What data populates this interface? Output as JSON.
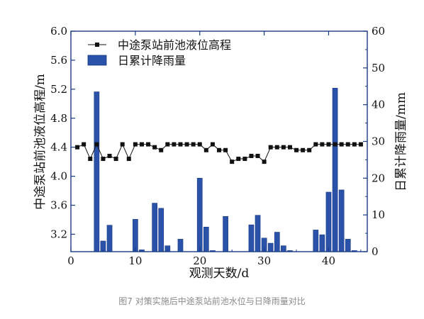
{
  "caption": "图7 对策实施后中途泵站前池水位与日降雨量对比",
  "chart_data": {
    "type": "bar+line",
    "xlabel": "观测天数/d",
    "ylabel_left": "中途泵站前池液位高程/m",
    "ylabel_right": "日累计降雨量/mm",
    "xlim": [
      0,
      46
    ],
    "ylim_left": [
      2.96,
      6.0
    ],
    "ylim_right": [
      0,
      60
    ],
    "x_ticks": [
      0,
      10,
      20,
      30,
      40
    ],
    "y_left_ticks": [
      3.2,
      3.6,
      4.0,
      4.4,
      4.8,
      5.2,
      5.6,
      6.0
    ],
    "y_left_tick_labels": [
      "3.2",
      "3.6",
      "4.0",
      "4.4",
      "4.8",
      "5.2",
      "5.6",
      "6.0"
    ],
    "y_right_ticks": [
      0,
      10,
      20,
      30,
      40,
      50,
      60
    ],
    "legend_position": "top-left",
    "colors": {
      "bars": "#2a52a8",
      "bar_edge": "#1a3a86",
      "line": "#111111"
    },
    "line_series": {
      "name": "中途泵站前池液位高程",
      "x": [
        1,
        2,
        3,
        4,
        5,
        6,
        7,
        8,
        9,
        10,
        11,
        12,
        13,
        14,
        15,
        16,
        17,
        18,
        19,
        20,
        21,
        22,
        23,
        24,
        25,
        26,
        27,
        28,
        29,
        30,
        31,
        32,
        33,
        34,
        35,
        36,
        37,
        38,
        39,
        40,
        41,
        42,
        43,
        44,
        45
      ],
      "y": [
        4.4,
        4.44,
        4.24,
        4.44,
        4.24,
        4.28,
        4.24,
        4.44,
        4.24,
        4.44,
        4.44,
        4.44,
        4.4,
        4.36,
        4.44,
        4.44,
        4.44,
        4.44,
        4.44,
        4.44,
        4.36,
        4.44,
        4.36,
        4.36,
        4.2,
        4.24,
        4.24,
        4.28,
        4.28,
        4.2,
        4.4,
        4.4,
        4.4,
        4.4,
        4.36,
        4.36,
        4.36,
        4.44,
        4.44,
        4.44,
        4.44,
        4.44,
        4.44,
        4.44,
        4.44
      ]
    },
    "bar_series": {
      "name": "日累计降雨量",
      "x": [
        4,
        5,
        6,
        10,
        11,
        13,
        14,
        15,
        17,
        20,
        21,
        22,
        24,
        28,
        29,
        30,
        31,
        32,
        33,
        34,
        38,
        39,
        40,
        41,
        42,
        43,
        44
      ],
      "values": [
        43.5,
        2.9,
        7.2,
        8.8,
        0.5,
        13.2,
        11.8,
        1.6,
        3.4,
        20,
        6.7,
        0.3,
        9.6,
        7.3,
        9.9,
        3.7,
        2.3,
        5.3,
        1.6,
        0.3,
        5.9,
        4.6,
        16.2,
        44.5,
        16.8,
        3.4,
        0.3
      ]
    }
  }
}
